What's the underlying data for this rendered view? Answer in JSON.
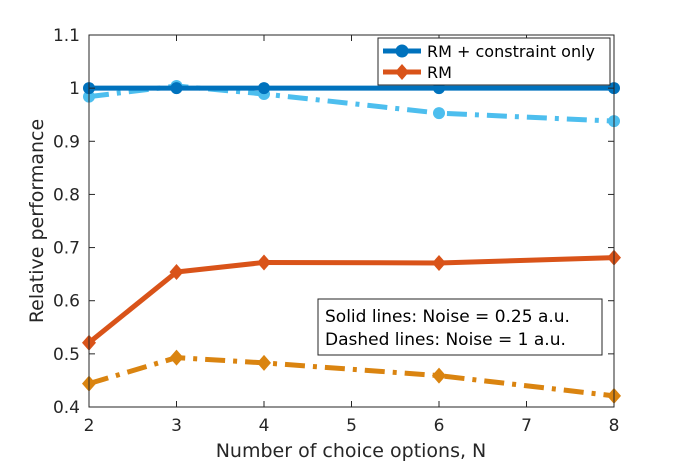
{
  "chart_data": {
    "type": "line",
    "xlabel": "Number of choice options, N",
    "ylabel": "Relative performance",
    "xlim": [
      2,
      8
    ],
    "ylim": [
      0.4,
      1.1
    ],
    "xticks": [
      "2",
      "3",
      "4",
      "5",
      "6",
      "7",
      "8"
    ],
    "yticks": [
      "0.4",
      "0.5",
      "0.6",
      "0.7",
      "0.8",
      "0.9",
      "1",
      "1.1"
    ],
    "grid": false,
    "legend_position": "top-right",
    "series": [
      {
        "name": "RM + constraint only",
        "color": "#0072BD",
        "marker": "circle",
        "line_style": "solid",
        "x": [
          2,
          3,
          4,
          6,
          8
        ],
        "y": [
          1.0,
          1.0,
          1.0,
          1.0,
          1.0
        ]
      },
      {
        "name": "RM",
        "color": "#D95319",
        "marker": "diamond",
        "line_style": "solid",
        "x": [
          2,
          3,
          4,
          6,
          8
        ],
        "y": [
          0.521,
          0.654,
          0.672,
          0.671,
          0.681
        ]
      },
      {
        "color": "#4DBEEE",
        "marker": "circle",
        "line_style": "dash-dot",
        "x": [
          2,
          3,
          4,
          6,
          8
        ],
        "y": [
          0.984,
          1.004,
          0.989,
          0.953,
          0.938
        ]
      },
      {
        "color": "#DA8410",
        "marker": "diamond",
        "line_style": "dash-dot",
        "x": [
          2,
          3,
          4,
          6,
          8
        ],
        "y": [
          0.444,
          0.493,
          0.483,
          0.459,
          0.421
        ]
      }
    ],
    "annotation": {
      "line1": "Solid lines: Noise = 0.25 a.u.",
      "line2": "Dashed lines: Noise = 1 a.u."
    }
  }
}
